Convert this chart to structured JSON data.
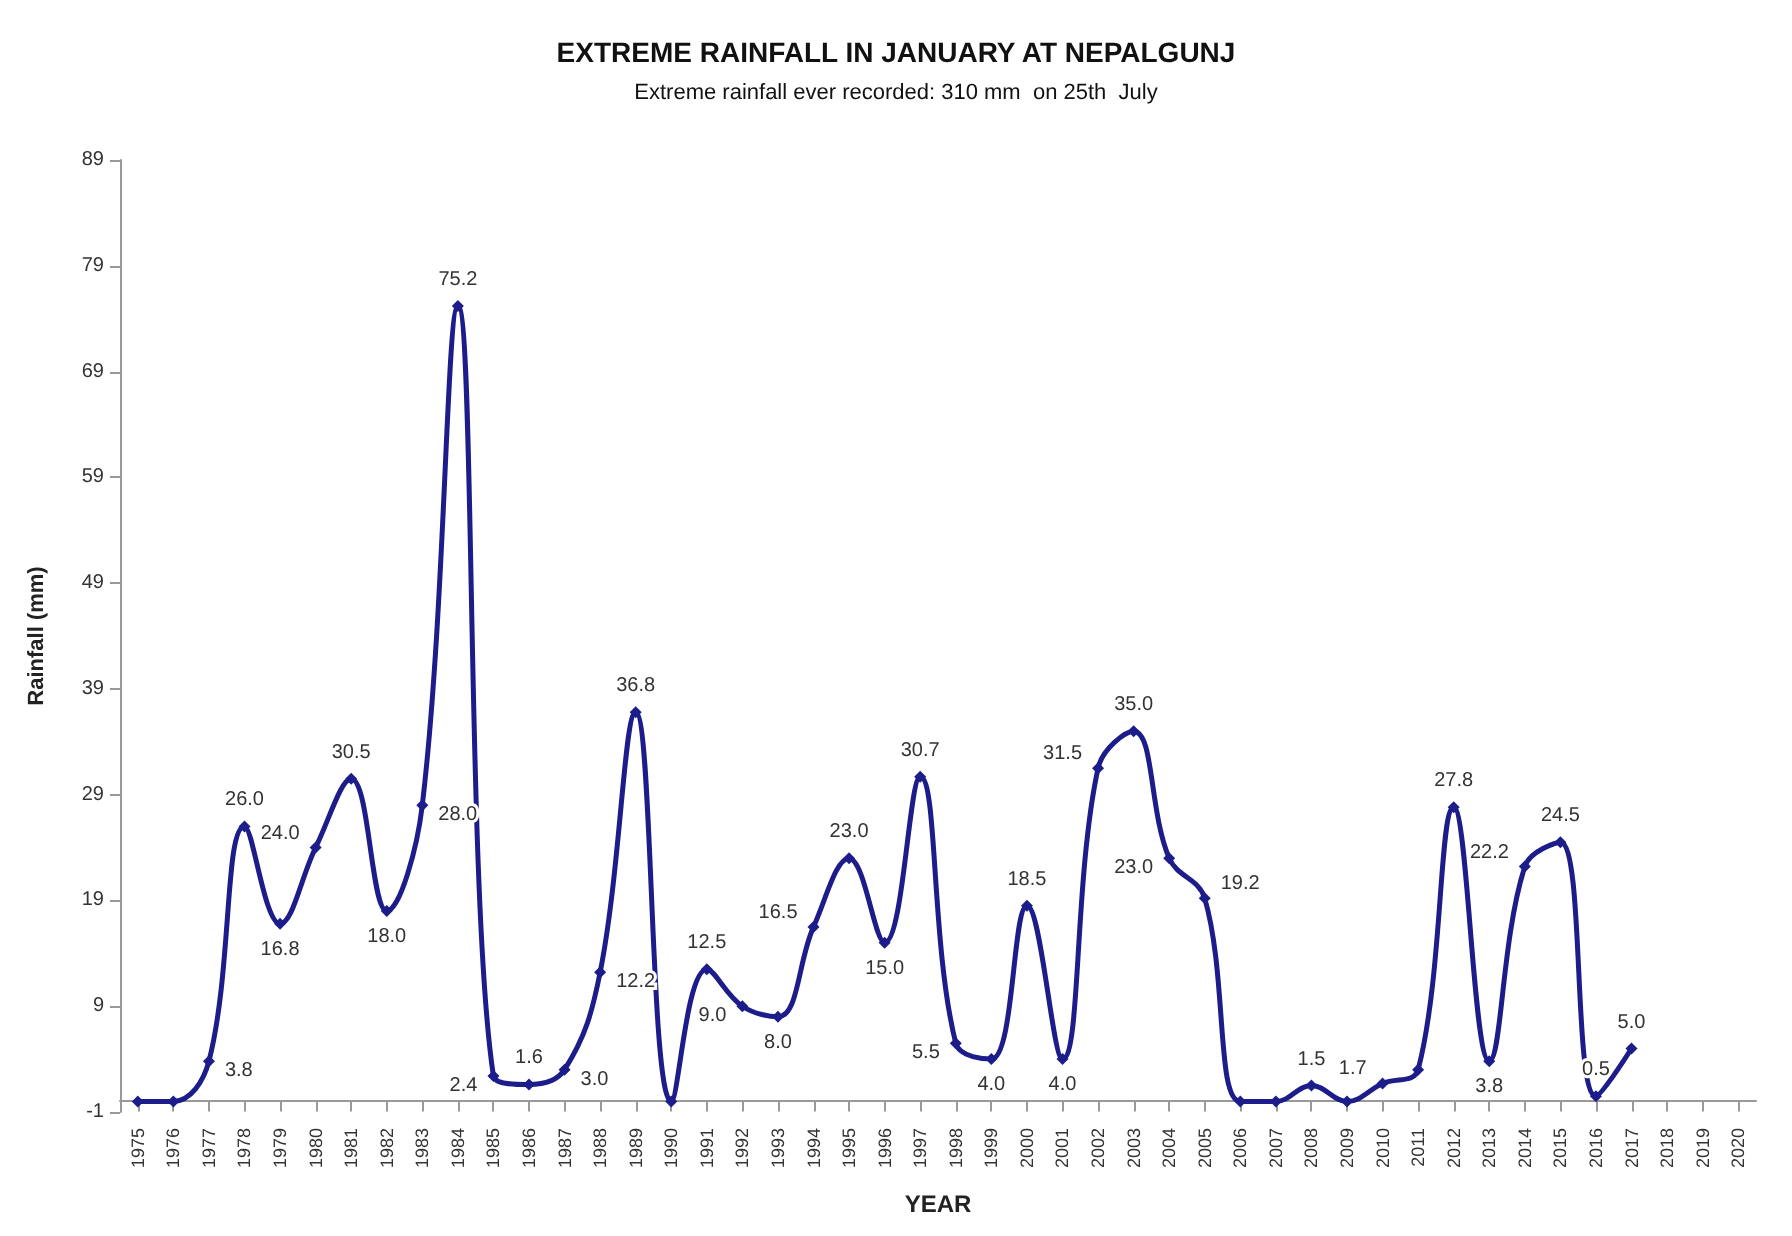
{
  "chart_data": {
    "type": "line",
    "title": "EXTREME RAINFALL IN JANUARY AT NEPALGUNJ",
    "subtitle": "Extreme rainfall ever recorded: 310 mm  on 25th  July",
    "xlabel": "YEAR",
    "ylabel": "Rainfall (mm)",
    "categories": [
      "1975",
      "1976",
      "1977",
      "1978",
      "1979",
      "1980",
      "1981",
      "1982",
      "1983",
      "1984",
      "1985",
      "1986",
      "1987",
      "1988",
      "1989",
      "1990",
      "1991",
      "1992",
      "1993",
      "1994",
      "1995",
      "1996",
      "1997",
      "1998",
      "1999",
      "2000",
      "2001",
      "2002",
      "2003",
      "2004",
      "2005",
      "2006",
      "2007",
      "2008",
      "2009",
      "2010",
      "2011",
      "2012",
      "2013",
      "2014",
      "2015",
      "2016",
      "2017",
      "2018",
      "2019",
      "2020"
    ],
    "series": [
      {
        "color": "#1c1c8a",
        "values": [
          0,
          0,
          3.8,
          26.0,
          16.8,
          24.0,
          30.5,
          18.0,
          28.0,
          75.2,
          2.4,
          1.6,
          3.0,
          12.2,
          36.8,
          0,
          12.5,
          9.0,
          8.0,
          16.5,
          23.0,
          15.0,
          30.7,
          5.5,
          4.0,
          18.5,
          4.0,
          31.5,
          35.0,
          23.0,
          19.2,
          0,
          0,
          1.5,
          0,
          1.7,
          3.0,
          27.8,
          3.8,
          22.2,
          24.5,
          0.5,
          5.0,
          null,
          null,
          null
        ],
        "value_labels": [
          null,
          null,
          "3.8",
          "26.0",
          "16.8",
          "24.0",
          "30.5",
          "18.0",
          "28.0",
          "75.2",
          "2.4",
          "1.6",
          "3.0",
          "12.2",
          "36.8",
          null,
          "12.5",
          "9.0",
          "8.0",
          "16.5",
          "23.0",
          "15.0",
          "30.7",
          "5.5",
          "4.0",
          "18.5",
          "4.0",
          "31.5",
          "35.0",
          "23.0",
          "19.2",
          null,
          null,
          "1.5",
          null,
          "1.7",
          null,
          "27.8",
          "3.8",
          "22.2",
          "24.5",
          "0.5",
          "5.0",
          null,
          null,
          null
        ]
      }
    ],
    "ylim": [
      -1,
      89
    ],
    "yticks": [
      -1,
      9,
      19,
      29,
      39,
      49,
      59,
      69,
      79,
      89
    ],
    "grid": false,
    "legend": false,
    "marker": "diamond",
    "line_style": "solid"
  }
}
